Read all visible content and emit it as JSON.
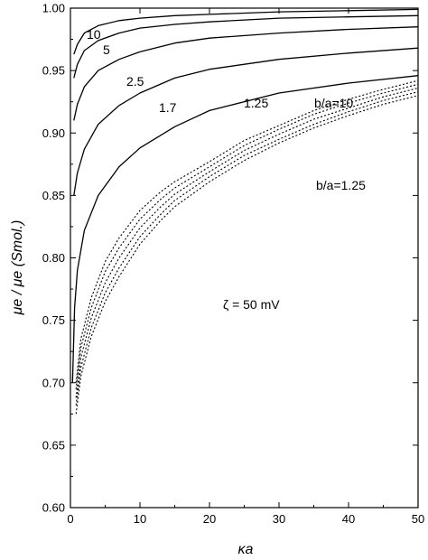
{
  "chart_data": {
    "type": "line",
    "xlabel": "κa",
    "ylabel": "μe / μe (Smol.)",
    "xlim": [
      0,
      50
    ],
    "ylim": [
      0.6,
      1.0
    ],
    "xticks": [
      0,
      10,
      20,
      30,
      40,
      50
    ],
    "yticks": [
      0.6,
      0.65,
      0.7,
      0.75,
      0.8,
      0.85,
      0.9,
      0.95,
      1.0
    ],
    "grid": false,
    "series": [
      {
        "label": "10",
        "style": "solid",
        "x": [
          0.5,
          1,
          2,
          4,
          7,
          10,
          15,
          20,
          30,
          40,
          50
        ],
        "y": [
          0.963,
          0.971,
          0.98,
          0.986,
          0.99,
          0.992,
          0.994,
          0.995,
          0.997,
          0.998,
          0.999
        ]
      },
      {
        "label": "5",
        "style": "solid",
        "x": [
          0.5,
          1,
          2,
          4,
          7,
          10,
          15,
          20,
          30,
          40,
          50
        ],
        "y": [
          0.944,
          0.955,
          0.966,
          0.974,
          0.98,
          0.984,
          0.987,
          0.989,
          0.992,
          0.993,
          0.994
        ]
      },
      {
        "label": "2.5",
        "style": "solid",
        "x": [
          0.5,
          1,
          2,
          4,
          7,
          10,
          15,
          20,
          30,
          40,
          50
        ],
        "y": [
          0.91,
          0.923,
          0.937,
          0.95,
          0.959,
          0.965,
          0.972,
          0.976,
          0.98,
          0.983,
          0.985
        ]
      },
      {
        "label": "1.7",
        "style": "solid",
        "x": [
          0.5,
          1,
          2,
          4,
          7,
          10,
          15,
          20,
          30,
          40,
          50
        ],
        "y": [
          0.85,
          0.868,
          0.887,
          0.907,
          0.922,
          0.932,
          0.944,
          0.951,
          0.959,
          0.964,
          0.968
        ]
      },
      {
        "label": "1.25",
        "style": "solid",
        "x": [
          0.3,
          0.6,
          1,
          2,
          4,
          7,
          10,
          15,
          20,
          30,
          40,
          50
        ],
        "y": [
          0.7,
          0.76,
          0.79,
          0.822,
          0.85,
          0.873,
          0.888,
          0.905,
          0.918,
          0.932,
          0.94,
          0.946
        ]
      },
      {
        "label": "b/a=10",
        "style": "dotted",
        "x": [
          0.8,
          1.5,
          3,
          5,
          7,
          10,
          13,
          15,
          20,
          25,
          30,
          35,
          40,
          45,
          50
        ],
        "y": [
          0.7,
          0.735,
          0.768,
          0.797,
          0.816,
          0.838,
          0.853,
          0.861,
          0.877,
          0.894,
          0.906,
          0.918,
          0.927,
          0.935,
          0.942
        ]
      },
      {
        "label": "",
        "style": "dotted",
        "x": [
          0.8,
          1.5,
          3,
          5,
          7,
          10,
          13,
          15,
          20,
          25,
          30,
          35,
          40,
          45,
          50
        ],
        "y": [
          0.695,
          0.728,
          0.76,
          0.789,
          0.808,
          0.831,
          0.847,
          0.856,
          0.873,
          0.89,
          0.903,
          0.915,
          0.924,
          0.932,
          0.939
        ]
      },
      {
        "label": "",
        "style": "dotted",
        "x": [
          0.8,
          1.5,
          3,
          5,
          7,
          10,
          13,
          15,
          20,
          25,
          30,
          35,
          40,
          45,
          50
        ],
        "y": [
          0.688,
          0.72,
          0.752,
          0.78,
          0.8,
          0.824,
          0.841,
          0.851,
          0.869,
          0.886,
          0.899,
          0.911,
          0.92,
          0.929,
          0.936
        ]
      },
      {
        "label": "",
        "style": "dotted",
        "x": [
          0.8,
          1.5,
          3,
          5,
          7,
          10,
          13,
          15,
          20,
          25,
          30,
          35,
          40,
          45,
          50
        ],
        "y": [
          0.682,
          0.712,
          0.744,
          0.772,
          0.792,
          0.817,
          0.835,
          0.846,
          0.865,
          0.882,
          0.895,
          0.907,
          0.917,
          0.926,
          0.933
        ]
      },
      {
        "label": "b/a=1.25",
        "style": "dotted",
        "x": [
          0.8,
          1.5,
          3,
          5,
          7,
          10,
          13,
          15,
          20,
          25,
          30,
          35,
          40,
          45,
          50
        ],
        "y": [
          0.675,
          0.705,
          0.737,
          0.765,
          0.785,
          0.811,
          0.83,
          0.841,
          0.861,
          0.878,
          0.892,
          0.904,
          0.914,
          0.923,
          0.93
        ]
      }
    ],
    "annotations": [
      {
        "text": "10"
      },
      {
        "text": "5"
      },
      {
        "text": "2.5"
      },
      {
        "text": "1.7"
      },
      {
        "text": "1.25"
      },
      {
        "text": "b/a=10"
      },
      {
        "text": "b/a=1.25"
      },
      {
        "text": "ζ = 50 mV"
      }
    ]
  }
}
